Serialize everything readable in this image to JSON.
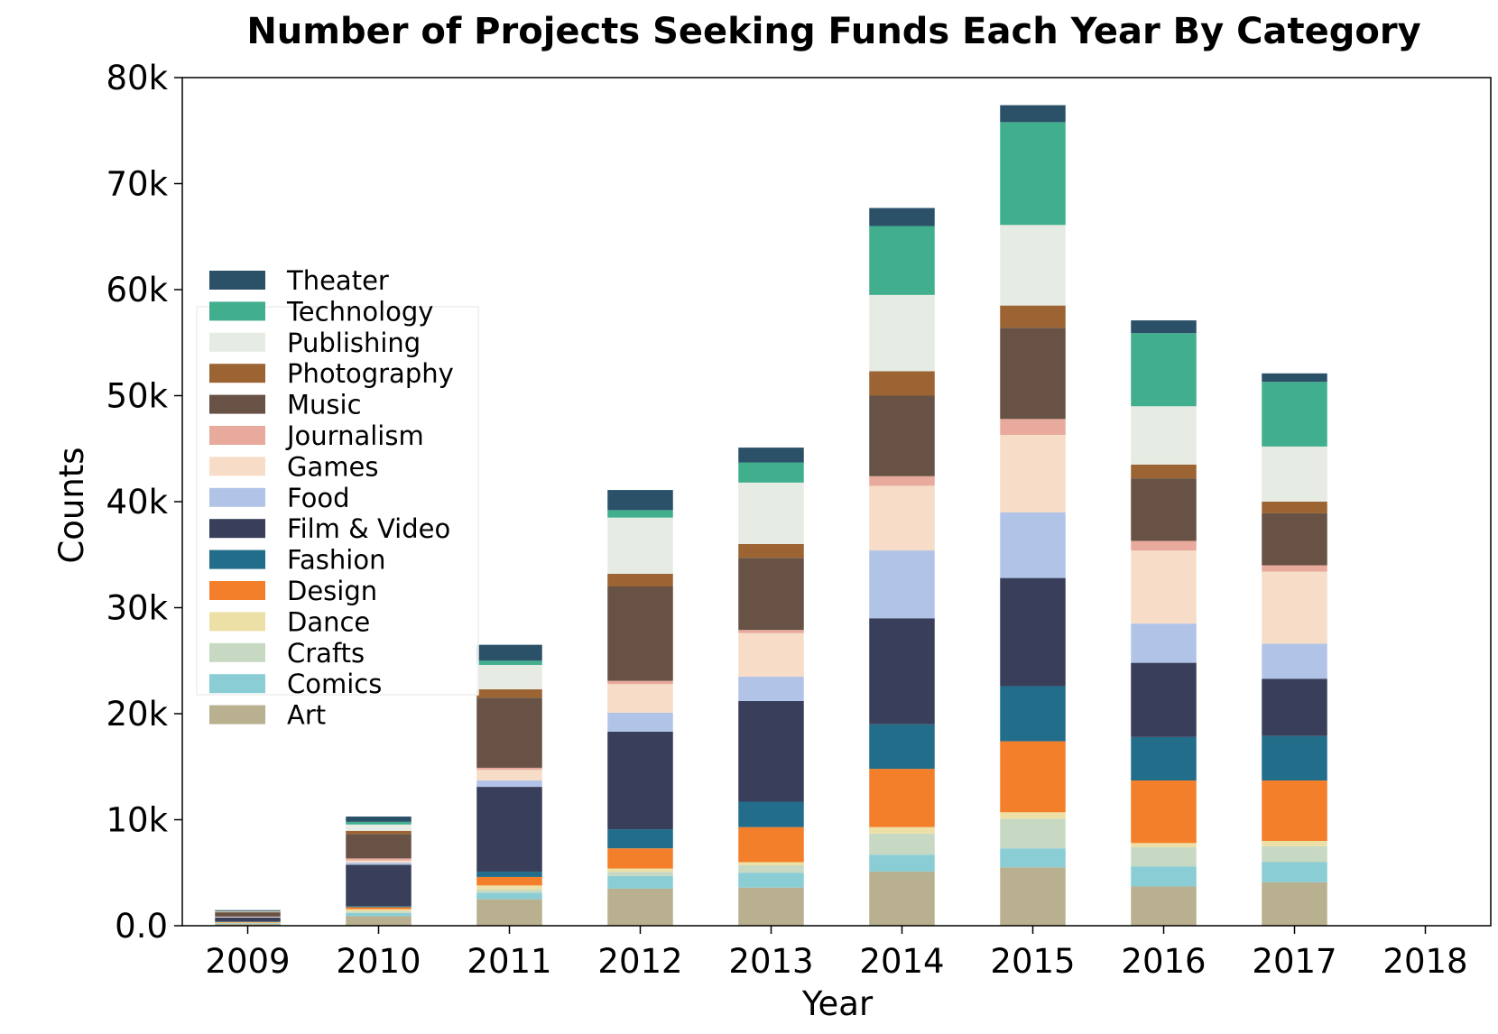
{
  "chart_data": {
    "type": "bar",
    "stacked": true,
    "title": "Number of Projects Seeking Funds Each Year By Category",
    "xlabel": "Year",
    "ylabel": "Counts",
    "ylim": [
      0,
      80000
    ],
    "yticks": [
      0,
      10000,
      20000,
      30000,
      40000,
      50000,
      60000,
      70000,
      80000
    ],
    "ytick_labels": [
      "0.0",
      "10k",
      "20k",
      "30k",
      "40k",
      "50k",
      "60k",
      "70k",
      "80k"
    ],
    "categories": [
      "2009",
      "2010",
      "2011",
      "2012",
      "2013",
      "2014",
      "2015",
      "2016",
      "2017",
      "2018"
    ],
    "legend_position": "left",
    "series": [
      {
        "name": "Art",
        "color": "#b9b08f",
        "values": [
          180,
          900,
          2500,
          3500,
          3600,
          5100,
          5500,
          3700,
          4100,
          2
        ]
      },
      {
        "name": "Comics",
        "color": "#8acdd4",
        "values": [
          60,
          300,
          600,
          1200,
          1400,
          1600,
          1800,
          1900,
          1900,
          2
        ]
      },
      {
        "name": "Crafts",
        "color": "#c7d9c3",
        "values": [
          20,
          150,
          300,
          400,
          700,
          2000,
          2800,
          1800,
          1500,
          1
        ]
      },
      {
        "name": "Dance",
        "color": "#ede0a6",
        "values": [
          40,
          200,
          400,
          300,
          300,
          600,
          600,
          400,
          500,
          1
        ]
      },
      {
        "name": "Design",
        "color": "#f47f2b",
        "values": [
          60,
          200,
          800,
          1900,
          3300,
          5500,
          6700,
          5900,
          5700,
          3
        ]
      },
      {
        "name": "Fashion",
        "color": "#216d8a",
        "values": [
          30,
          100,
          500,
          1800,
          2400,
          4200,
          5200,
          4100,
          4200,
          2
        ]
      },
      {
        "name": "Film & Video",
        "color": "#393f5a",
        "values": [
          380,
          3900,
          8000,
          9200,
          9500,
          10000,
          10200,
          7000,
          5400,
          5
        ]
      },
      {
        "name": "Food",
        "color": "#b1c4e8",
        "values": [
          30,
          200,
          600,
          1800,
          2300,
          6400,
          6200,
          3700,
          3300,
          2
        ]
      },
      {
        "name": "Games",
        "color": "#f7dcc8",
        "values": [
          40,
          200,
          1000,
          2700,
          4100,
          6100,
          7300,
          6900,
          6800,
          3
        ]
      },
      {
        "name": "Journalism",
        "color": "#e8aa9c",
        "values": [
          20,
          200,
          200,
          300,
          300,
          900,
          1500,
          900,
          600,
          2
        ]
      },
      {
        "name": "Music",
        "color": "#675245",
        "values": [
          400,
          2300,
          6600,
          8900,
          6800,
          7600,
          8600,
          5900,
          4900,
          5
        ]
      },
      {
        "name": "Photography",
        "color": "#9b6432",
        "values": [
          50,
          300,
          800,
          1200,
          1300,
          2300,
          2100,
          1300,
          1100,
          2
        ]
      },
      {
        "name": "Publishing",
        "color": "#e6ebe3",
        "values": [
          60,
          600,
          2300,
          5300,
          5800,
          7200,
          7600,
          5500,
          5200,
          4
        ]
      },
      {
        "name": "Technology",
        "color": "#41ae8e",
        "values": [
          20,
          250,
          400,
          700,
          1900,
          6500,
          9700,
          6900,
          6100,
          4
        ]
      },
      {
        "name": "Theater",
        "color": "#2b5169",
        "values": [
          80,
          500,
          1500,
          1900,
          1400,
          1700,
          1600,
          1200,
          800,
          1
        ]
      }
    ]
  }
}
